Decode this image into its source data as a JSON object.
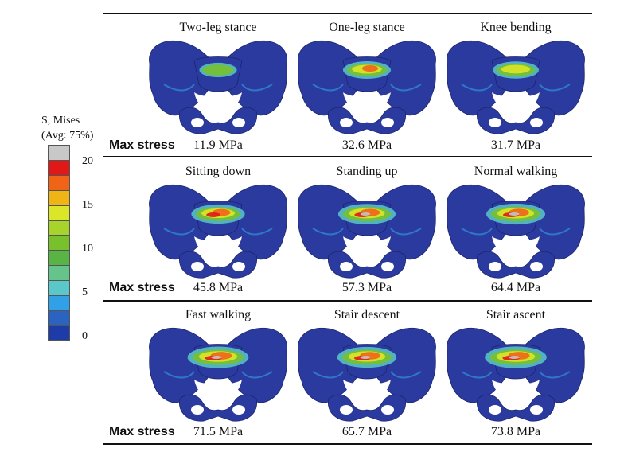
{
  "legend": {
    "title_line1": "S, Mises",
    "title_line2": "(Avg: 75%)",
    "ticks": [
      "20",
      "15",
      "10",
      "5",
      "0"
    ],
    "colors": [
      "#c8c8c8",
      "#e01818",
      "#f06418",
      "#f0b414",
      "#dce628",
      "#a6d42a",
      "#78c02c",
      "#58b444",
      "#64c48c",
      "#5ac8c8",
      "#32a0e6",
      "#2a64c0",
      "#1e3ca8"
    ]
  },
  "row_label": "Max stress",
  "panels": [
    {
      "title": "Two-leg stance",
      "max_stress": "11.9 MPa",
      "level": 0.18
    },
    {
      "title": "One-leg stance",
      "max_stress": "32.6 MPa",
      "level": 0.5
    },
    {
      "title": "Knee bending",
      "max_stress": "31.7 MPa",
      "level": 0.45
    },
    {
      "title": "Sitting down",
      "max_stress": "45.8 MPa",
      "level": 0.68
    },
    {
      "title": "Standing up",
      "max_stress": "57.3 MPa",
      "level": 0.8
    },
    {
      "title": "Normal walking",
      "max_stress": "64.4 MPa",
      "level": 0.85
    },
    {
      "title": "Fast walking",
      "max_stress": "71.5 MPa",
      "level": 0.92
    },
    {
      "title": "Stair descent",
      "max_stress": "65.7 MPa",
      "level": 0.86
    },
    {
      "title": "Stair ascent",
      "max_stress": "73.8 MPa",
      "level": 0.94
    }
  ]
}
